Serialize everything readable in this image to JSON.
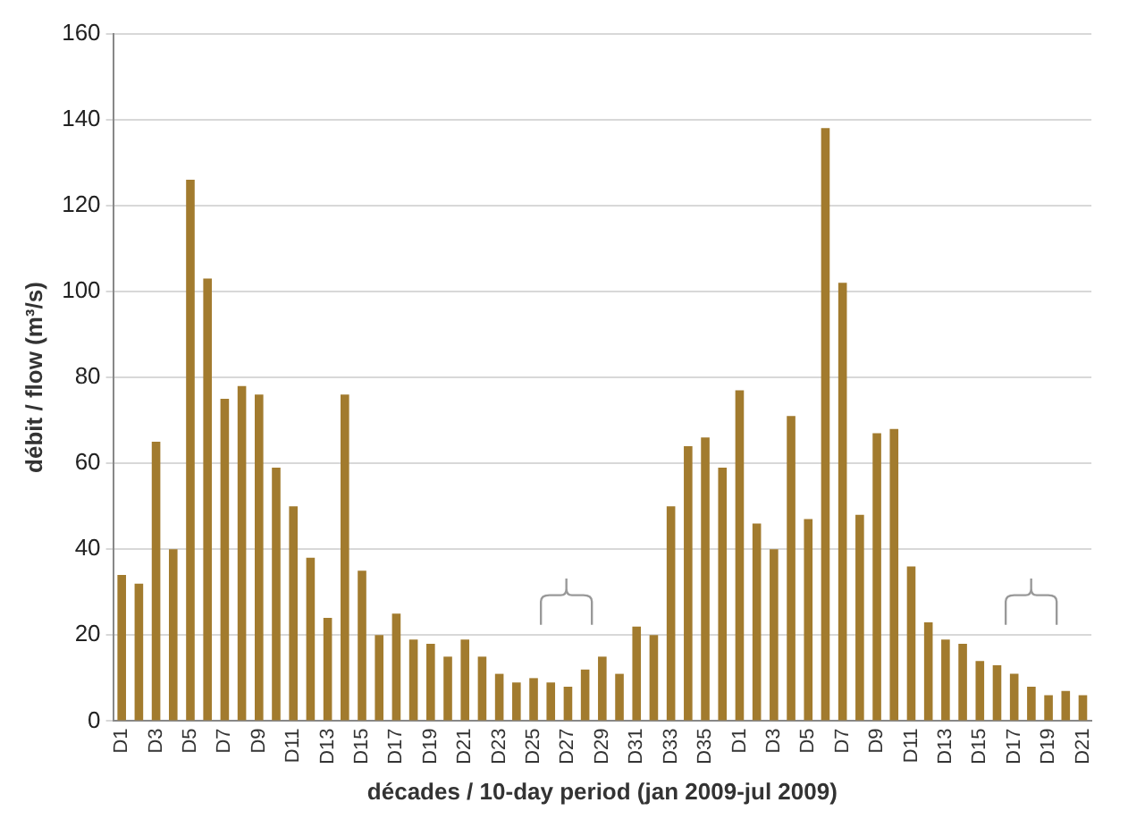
{
  "chart_data": {
    "type": "bar",
    "xlabel": "décades / 10-day period (jan 2009-jul 2009)",
    "ylabel": "débit / flow (m³/s)",
    "categories": [
      "D1",
      null,
      "D3",
      null,
      "D5",
      null,
      "D7",
      null,
      "D9",
      null,
      "D11",
      null,
      "D13",
      null,
      "D15",
      null,
      "D17",
      null,
      "D19",
      null,
      "D21",
      null,
      "D23",
      null,
      "D25",
      null,
      "D27",
      null,
      "D29",
      null,
      "D31",
      null,
      "D33",
      null,
      "D35",
      null,
      "D1",
      null,
      "D3",
      null,
      "D5",
      null,
      "D7",
      null,
      "D9",
      null,
      "D11",
      null,
      "D13",
      null,
      "D15",
      null,
      "D17",
      null,
      "D19",
      null,
      "D21"
    ],
    "values": [
      34,
      32,
      65,
      40,
      126,
      103,
      75,
      78,
      76,
      59,
      50,
      38,
      24,
      76,
      35,
      20,
      25,
      19,
      18,
      15,
      19,
      15,
      11,
      9,
      10,
      9,
      8,
      12,
      15,
      11,
      22,
      20,
      50,
      64,
      66,
      59,
      77,
      46,
      40,
      71,
      47,
      138,
      102,
      48,
      67,
      68,
      36,
      23,
      19,
      18,
      14,
      13,
      11,
      8,
      6,
      7,
      6
    ],
    "color": "#a27b2e",
    "ylim": [
      0,
      160
    ],
    "yticks": [
      0,
      20,
      40,
      60,
      80,
      100,
      120,
      140,
      160
    ],
    "grid": "y",
    "legend": false
  }
}
